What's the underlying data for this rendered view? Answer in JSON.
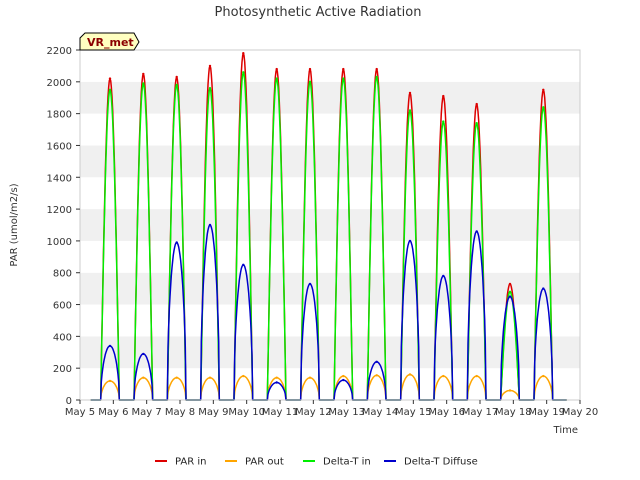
{
  "chart_data": {
    "type": "line",
    "title": "Photosynthetic Active Radiation",
    "xlabel": "Time",
    "ylabel": "PAR (umol/m2/s)",
    "badge": "VR_met",
    "ylim": [
      0,
      2200
    ],
    "yticks": [
      0,
      200,
      400,
      600,
      800,
      1000,
      1200,
      1400,
      1600,
      1800,
      2000,
      2200
    ],
    "xlim": [
      5,
      20
    ],
    "xticks": [
      {
        "v": 5,
        "label": "May 5"
      },
      {
        "v": 6,
        "label": "May 6"
      },
      {
        "v": 7,
        "label": "May 7"
      },
      {
        "v": 8,
        "label": "May 8"
      },
      {
        "v": 9,
        "label": "May 9"
      },
      {
        "v": 10,
        "label": "May 10"
      },
      {
        "v": 11,
        "label": "May 11"
      },
      {
        "v": 12,
        "label": "May 12"
      },
      {
        "v": 13,
        "label": "May 13"
      },
      {
        "v": 14,
        "label": "May 14"
      },
      {
        "v": 15,
        "label": "May 15"
      },
      {
        "v": 16,
        "label": "May 16"
      },
      {
        "v": 17,
        "label": "May 17"
      },
      {
        "v": 18,
        "label": "May 18"
      },
      {
        "v": 19,
        "label": "May 19"
      },
      {
        "v": 20,
        "label": "May 20"
      }
    ],
    "grid": "horizontal bands",
    "legend_position": "bottom",
    "series": [
      {
        "name": "PAR in",
        "color": "#dd0000",
        "peaks": [
          2020,
          2050,
          2030,
          2100,
          2180,
          2080,
          2080,
          2080,
          2080,
          1930,
          1910,
          1860,
          730,
          1950
        ]
      },
      {
        "name": "PAR out",
        "color": "#ffa500",
        "peaks": [
          120,
          140,
          140,
          140,
          150,
          140,
          140,
          150,
          155,
          160,
          150,
          150,
          60,
          150
        ]
      },
      {
        "name": "Delta-T in",
        "color": "#00ee00",
        "peaks": [
          1950,
          1990,
          1980,
          1960,
          2060,
          2020,
          2000,
          2020,
          2030,
          1820,
          1750,
          1740,
          680,
          1840
        ]
      },
      {
        "name": "Delta-T Diffuse",
        "color": "#0000cc",
        "peaks": [
          340,
          290,
          990,
          1100,
          850,
          110,
          730,
          125,
          240,
          1000,
          780,
          1060,
          650,
          700
        ]
      }
    ],
    "day_starts": [
      5.62,
      6.62,
      7.62,
      8.62,
      9.62,
      10.62,
      11.62,
      12.62,
      13.62,
      14.62,
      15.62,
      16.62,
      17.62,
      18.62
    ],
    "day_length": 0.56
  }
}
